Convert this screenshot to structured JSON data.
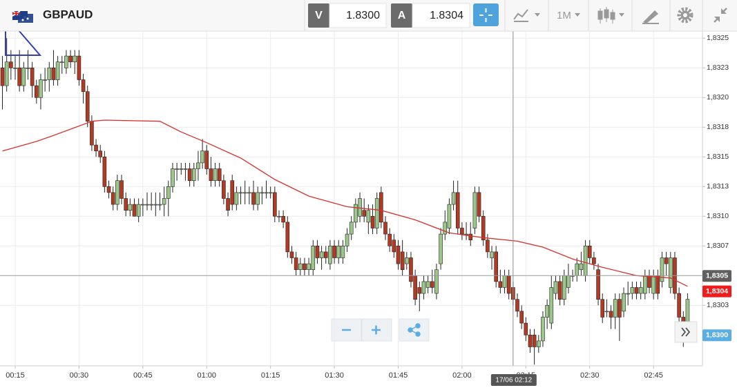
{
  "toolbar": {
    "symbol": "GBPAUD",
    "sell_label": "V",
    "sell_price": "1.8300",
    "buy_label": "A",
    "buy_price": "1.8304",
    "timeframe": "1M"
  },
  "chart_data": {
    "type": "candlestick",
    "xlim": [
      -0.57,
      164.5
    ],
    "ylim": [
      1.82974,
      1.83256
    ],
    "grid": true,
    "up_color": "#9cc68a",
    "down_color": "#b23a22",
    "yticks": [
      {
        "value": 1.8325,
        "label": "1,8325"
      },
      {
        "value": 1.83225,
        "label": "1,8323"
      },
      {
        "value": 1.832,
        "label": "1,8320"
      },
      {
        "value": 1.83175,
        "label": "1,8318"
      },
      {
        "value": 1.8315,
        "label": "1,8315"
      },
      {
        "value": 1.83125,
        "label": "1,8313"
      },
      {
        "value": 1.831,
        "label": "1,8310"
      },
      {
        "value": 1.83075,
        "label": "1,8307"
      },
      {
        "value": 1.83025,
        "label": "1,8303"
      }
    ],
    "xticks": [
      {
        "value": 3,
        "label": "00:15"
      },
      {
        "value": 18,
        "label": "00:30"
      },
      {
        "value": 33,
        "label": "00:45"
      },
      {
        "value": 48,
        "label": "01:00"
      },
      {
        "value": 63,
        "label": "01:15"
      },
      {
        "value": 78,
        "label": "01:30"
      },
      {
        "value": 93,
        "label": "01:45"
      },
      {
        "value": 108,
        "label": "02:00"
      },
      {
        "value": 123,
        "label": "02:15"
      },
      {
        "value": 138,
        "label": "02:30"
      },
      {
        "value": 153,
        "label": "02:45"
      }
    ],
    "candles": [
      [
        1.83225,
        1.83235,
        1.8319,
        1.8321
      ],
      [
        1.8321,
        1.8325,
        1.83205,
        1.8323
      ],
      [
        1.8323,
        1.8324,
        1.83215,
        1.83225
      ],
      [
        1.83225,
        1.83235,
        1.83215,
        1.83225
      ],
      [
        1.83225,
        1.8324,
        1.83205,
        1.8321
      ],
      [
        1.8321,
        1.8323,
        1.83205,
        1.83225
      ],
      [
        1.83225,
        1.8324,
        1.83215,
        1.83225
      ],
      [
        1.83225,
        1.8323,
        1.832,
        1.8321
      ],
      [
        1.8321,
        1.83215,
        1.83195,
        1.832
      ],
      [
        1.832,
        1.8322,
        1.8319,
        1.83215
      ],
      [
        1.83215,
        1.83225,
        1.83205,
        1.83215
      ],
      [
        1.83215,
        1.8323,
        1.83205,
        1.83225
      ],
      [
        1.83225,
        1.8324,
        1.8321,
        1.83215
      ],
      [
        1.83215,
        1.83235,
        1.8321,
        1.8323
      ],
      [
        1.8323,
        1.83235,
        1.8322,
        1.8323
      ],
      [
        1.83225,
        1.8324,
        1.8322,
        1.83235
      ],
      [
        1.83235,
        1.8324,
        1.83225,
        1.8323
      ],
      [
        1.8323,
        1.8324,
        1.8322,
        1.83235
      ],
      [
        1.83235,
        1.8324,
        1.8321,
        1.83215
      ],
      [
        1.83215,
        1.8322,
        1.83195,
        1.83205
      ],
      [
        1.83205,
        1.8321,
        1.83175,
        1.8318
      ],
      [
        1.8318,
        1.83185,
        1.83155,
        1.8316
      ],
      [
        1.8316,
        1.83165,
        1.8315,
        1.83155
      ],
      [
        1.83155,
        1.8316,
        1.83145,
        1.8315
      ],
      [
        1.8315,
        1.83155,
        1.8312,
        1.83125
      ],
      [
        1.83125,
        1.8313,
        1.83115,
        1.8312
      ],
      [
        1.8312,
        1.83125,
        1.83105,
        1.8311
      ],
      [
        1.8311,
        1.83135,
        1.83105,
        1.8313
      ],
      [
        1.8313,
        1.83135,
        1.8311,
        1.83115
      ],
      [
        1.83115,
        1.8312,
        1.831,
        1.83105
      ],
      [
        1.83105,
        1.83115,
        1.831,
        1.8311
      ],
      [
        1.8311,
        1.83115,
        1.831,
        1.831
      ],
      [
        1.831,
        1.83115,
        1.83095,
        1.8311
      ],
      [
        1.8311,
        1.83115,
        1.831,
        1.8311
      ],
      [
        1.8311,
        1.8312,
        1.83105,
        1.8311
      ],
      [
        1.8311,
        1.8312,
        1.83105,
        1.8311
      ],
      [
        1.8311,
        1.8312,
        1.831,
        1.8311
      ],
      [
        1.8311,
        1.8312,
        1.83105,
        1.8311
      ],
      [
        1.8311,
        1.83125,
        1.831,
        1.83115
      ],
      [
        1.83115,
        1.8313,
        1.831,
        1.83125
      ],
      [
        1.83125,
        1.83145,
        1.8312,
        1.8314
      ],
      [
        1.8314,
        1.83145,
        1.8313,
        1.8314
      ],
      [
        1.8314,
        1.83145,
        1.83135,
        1.8314
      ],
      [
        1.8314,
        1.83145,
        1.8313,
        1.8314
      ],
      [
        1.8314,
        1.83145,
        1.83125,
        1.8313
      ],
      [
        1.8313,
        1.83145,
        1.83125,
        1.8314
      ],
      [
        1.8314,
        1.83155,
        1.8313,
        1.83145
      ],
      [
        1.83145,
        1.83165,
        1.8314,
        1.83155
      ],
      [
        1.83155,
        1.8316,
        1.83135,
        1.8314
      ],
      [
        1.8314,
        1.8315,
        1.83125,
        1.8313
      ],
      [
        1.8313,
        1.83145,
        1.83125,
        1.8314
      ],
      [
        1.8314,
        1.83145,
        1.83125,
        1.8313
      ],
      [
        1.8313,
        1.83135,
        1.8311,
        1.83115
      ],
      [
        1.83115,
        1.8312,
        1.831,
        1.83105
      ],
      [
        1.8313,
        1.83135,
        1.83105,
        1.8311
      ],
      [
        1.8311,
        1.83125,
        1.83105,
        1.8312
      ],
      [
        1.8312,
        1.83125,
        1.8311,
        1.8312
      ],
      [
        1.8312,
        1.8313,
        1.8311,
        1.8312
      ],
      [
        1.8312,
        1.83125,
        1.8311,
        1.8312
      ],
      [
        1.8312,
        1.8313,
        1.83105,
        1.8311
      ],
      [
        1.8311,
        1.83125,
        1.83105,
        1.8312
      ],
      [
        1.8312,
        1.83125,
        1.8311,
        1.8312
      ],
      [
        1.8312,
        1.8313,
        1.83115,
        1.8312
      ],
      [
        1.8312,
        1.83125,
        1.83115,
        1.8312
      ],
      [
        1.8312,
        1.83125,
        1.83095,
        1.831
      ],
      [
        1.831,
        1.83105,
        1.83095,
        1.831
      ],
      [
        1.831,
        1.83105,
        1.8309,
        1.83095
      ],
      [
        1.83095,
        1.831,
        1.83065,
        1.8307
      ],
      [
        1.8307,
        1.83075,
        1.8306,
        1.83065
      ],
      [
        1.83065,
        1.8307,
        1.8305,
        1.83055
      ],
      [
        1.83055,
        1.83065,
        1.8305,
        1.8306
      ],
      [
        1.8306,
        1.83065,
        1.8305,
        1.83055
      ],
      [
        1.83055,
        1.83065,
        1.8305,
        1.8306
      ],
      [
        1.83055,
        1.8308,
        1.8305,
        1.83075
      ],
      [
        1.83075,
        1.8308,
        1.8306,
        1.83065
      ],
      [
        1.83065,
        1.83075,
        1.83055,
        1.8307
      ],
      [
        1.8307,
        1.83075,
        1.8306,
        1.83065
      ],
      [
        1.8306,
        1.8308,
        1.83055,
        1.83075
      ],
      [
        1.83075,
        1.8308,
        1.8306,
        1.83065
      ],
      [
        1.83065,
        1.8308,
        1.8306,
        1.83075
      ],
      [
        1.83065,
        1.8308,
        1.8306,
        1.83075
      ],
      [
        1.83075,
        1.8309,
        1.8307,
        1.83085
      ],
      [
        1.83085,
        1.831,
        1.8308,
        1.83095
      ],
      [
        1.83095,
        1.83115,
        1.8309,
        1.8311
      ],
      [
        1.831,
        1.8312,
        1.83095,
        1.83115
      ],
      [
        1.83105,
        1.83115,
        1.83095,
        1.831
      ],
      [
        1.83095,
        1.8311,
        1.83085,
        1.83105
      ],
      [
        1.831,
        1.8311,
        1.83085,
        1.8309
      ],
      [
        1.8309,
        1.8312,
        1.83085,
        1.83115
      ],
      [
        1.8312,
        1.83125,
        1.8309,
        1.83095
      ],
      [
        1.83095,
        1.831,
        1.8308,
        1.83085
      ],
      [
        1.83085,
        1.8309,
        1.8307,
        1.83075
      ],
      [
        1.8308,
        1.83085,
        1.83065,
        1.8307
      ],
      [
        1.83075,
        1.8308,
        1.83055,
        1.8306
      ],
      [
        1.8307,
        1.8308,
        1.8305,
        1.83055
      ],
      [
        1.8306,
        1.8307,
        1.83055,
        1.83065
      ],
      [
        1.83065,
        1.8307,
        1.8304,
        1.83045
      ],
      [
        1.8305,
        1.83055,
        1.83025,
        1.8303
      ],
      [
        1.8304,
        1.83045,
        1.8302,
        1.83035
      ],
      [
        1.83035,
        1.8305,
        1.8303,
        1.83045
      ],
      [
        1.8304,
        1.8305,
        1.83035,
        1.83045
      ],
      [
        1.83045,
        1.83055,
        1.83035,
        1.8304
      ],
      [
        1.83035,
        1.8306,
        1.8303,
        1.83055
      ],
      [
        1.8306,
        1.8309,
        1.83055,
        1.83085
      ],
      [
        1.83085,
        1.83105,
        1.8308,
        1.83095
      ],
      [
        1.8309,
        1.83115,
        1.83085,
        1.8311
      ],
      [
        1.8311,
        1.8313,
        1.83105,
        1.8312
      ],
      [
        1.8312,
        1.8313,
        1.83085,
        1.8309
      ],
      [
        1.8309,
        1.83095,
        1.8308,
        1.83085
      ],
      [
        1.83085,
        1.83095,
        1.8308,
        1.83085
      ],
      [
        1.83085,
        1.83095,
        1.83075,
        1.8308
      ],
      [
        1.8309,
        1.83125,
        1.83085,
        1.8312
      ],
      [
        1.8312,
        1.83125,
        1.83095,
        1.831
      ],
      [
        1.831,
        1.83105,
        1.83075,
        1.8308
      ],
      [
        1.8308,
        1.83085,
        1.83065,
        1.8307
      ],
      [
        1.83065,
        1.83075,
        1.83055,
        1.8307
      ],
      [
        1.8307,
        1.83075,
        1.8304,
        1.83045
      ],
      [
        1.83045,
        1.83055,
        1.83035,
        1.8304
      ],
      [
        1.8304,
        1.83055,
        1.83035,
        1.8305
      ],
      [
        1.8305,
        1.83055,
        1.8303,
        1.83035
      ],
      [
        1.8304,
        1.83045,
        1.83025,
        1.8303
      ],
      [
        1.8303,
        1.83035,
        1.83015,
        1.8302
      ],
      [
        1.8302,
        1.83025,
        1.83005,
        1.8301
      ],
      [
        1.8301,
        1.83015,
        1.82995,
        1.83
      ],
      [
        1.83,
        1.83005,
        1.82985,
        1.8299
      ],
      [
        1.83,
        1.83005,
        1.82975,
        1.8299
      ],
      [
        1.8299,
        1.83,
        1.82985,
        1.82995
      ],
      [
        1.82995,
        1.8302,
        1.8299,
        1.83015
      ],
      [
        1.83015,
        1.8303,
        1.83005,
        1.83025
      ],
      [
        1.8301,
        1.8305,
        1.83005,
        1.8304
      ],
      [
        1.83035,
        1.8305,
        1.8303,
        1.83045
      ],
      [
        1.83045,
        1.8305,
        1.83025,
        1.8303
      ],
      [
        1.8303,
        1.83055,
        1.83025,
        1.8305
      ],
      [
        1.8304,
        1.8306,
        1.83035,
        1.8305
      ],
      [
        1.8305,
        1.83055,
        1.83045,
        1.8305
      ],
      [
        1.8305,
        1.83065,
        1.83045,
        1.8306
      ],
      [
        1.83055,
        1.8307,
        1.8305,
        1.8306
      ],
      [
        1.8305,
        1.8308,
        1.83045,
        1.83075
      ],
      [
        1.83075,
        1.8308,
        1.8306,
        1.83065
      ],
      [
        1.83065,
        1.8307,
        1.83055,
        1.8306
      ],
      [
        1.83055,
        1.8306,
        1.83025,
        1.8303
      ],
      [
        1.8303,
        1.83035,
        1.8301,
        1.83015
      ],
      [
        1.8302,
        1.8303,
        1.83015,
        1.8302
      ],
      [
        1.8302,
        1.83025,
        1.83005,
        1.83015
      ],
      [
        1.83015,
        1.83035,
        1.83005,
        1.8303
      ],
      [
        1.8303,
        1.83035,
        1.82995,
        1.83015
      ],
      [
        1.8302,
        1.8304,
        1.83015,
        1.83035
      ],
      [
        1.83035,
        1.83045,
        1.83025,
        1.83035
      ],
      [
        1.83035,
        1.83045,
        1.8303,
        1.8304
      ],
      [
        1.8304,
        1.83045,
        1.8303,
        1.83035
      ],
      [
        1.83035,
        1.83045,
        1.8303,
        1.8304
      ],
      [
        1.83035,
        1.83055,
        1.8303,
        1.8305
      ],
      [
        1.8305,
        1.83055,
        1.83035,
        1.8304
      ],
      [
        1.83035,
        1.83055,
        1.8303,
        1.8305
      ],
      [
        1.8305,
        1.83055,
        1.8303,
        1.83035
      ],
      [
        1.83045,
        1.8307,
        1.8304,
        1.83065
      ],
      [
        1.83065,
        1.8307,
        1.8305,
        1.8306
      ],
      [
        1.8304,
        1.8307,
        1.83035,
        1.83065
      ],
      [
        1.83065,
        1.8307,
        1.8303,
        1.83035
      ],
      [
        1.83035,
        1.8304,
        1.8301,
        1.83015
      ],
      [
        1.83015,
        1.8302,
        1.8299,
        1.83005
      ],
      [
        1.83005,
        1.83035,
        1.83,
        1.8303
      ]
    ],
    "moving_average": {
      "color": "#d9302c",
      "x": [
        0,
        5,
        8,
        12,
        21,
        24,
        37,
        42,
        48,
        56,
        64,
        72,
        81,
        89,
        97,
        105,
        113,
        121,
        127,
        134,
        141,
        149,
        157,
        161
      ],
      "values": [
        1.83155,
        1.8316,
        1.83163,
        1.83168,
        1.8318,
        1.83181,
        1.8318,
        1.83171,
        1.83162,
        1.83149,
        1.83131,
        1.83117,
        1.83108,
        1.83105,
        1.83097,
        1.83086,
        1.83082,
        1.83079,
        1.83074,
        1.83064,
        1.83057,
        1.8305,
        1.83048,
        1.83041
      ]
    },
    "crosshair": {
      "x": 120,
      "y": 1.8305,
      "label": "17/06 02:12"
    },
    "price_tags": [
      {
        "value": 1.8305,
        "label": "1,8305",
        "color": "#5f5f5f"
      },
      {
        "value": 1.83037,
        "label": "1,8304",
        "color": "#ee1c1c"
      },
      {
        "value": 1.83,
        "label": "1,8300",
        "color": "#5aaee3"
      }
    ]
  }
}
